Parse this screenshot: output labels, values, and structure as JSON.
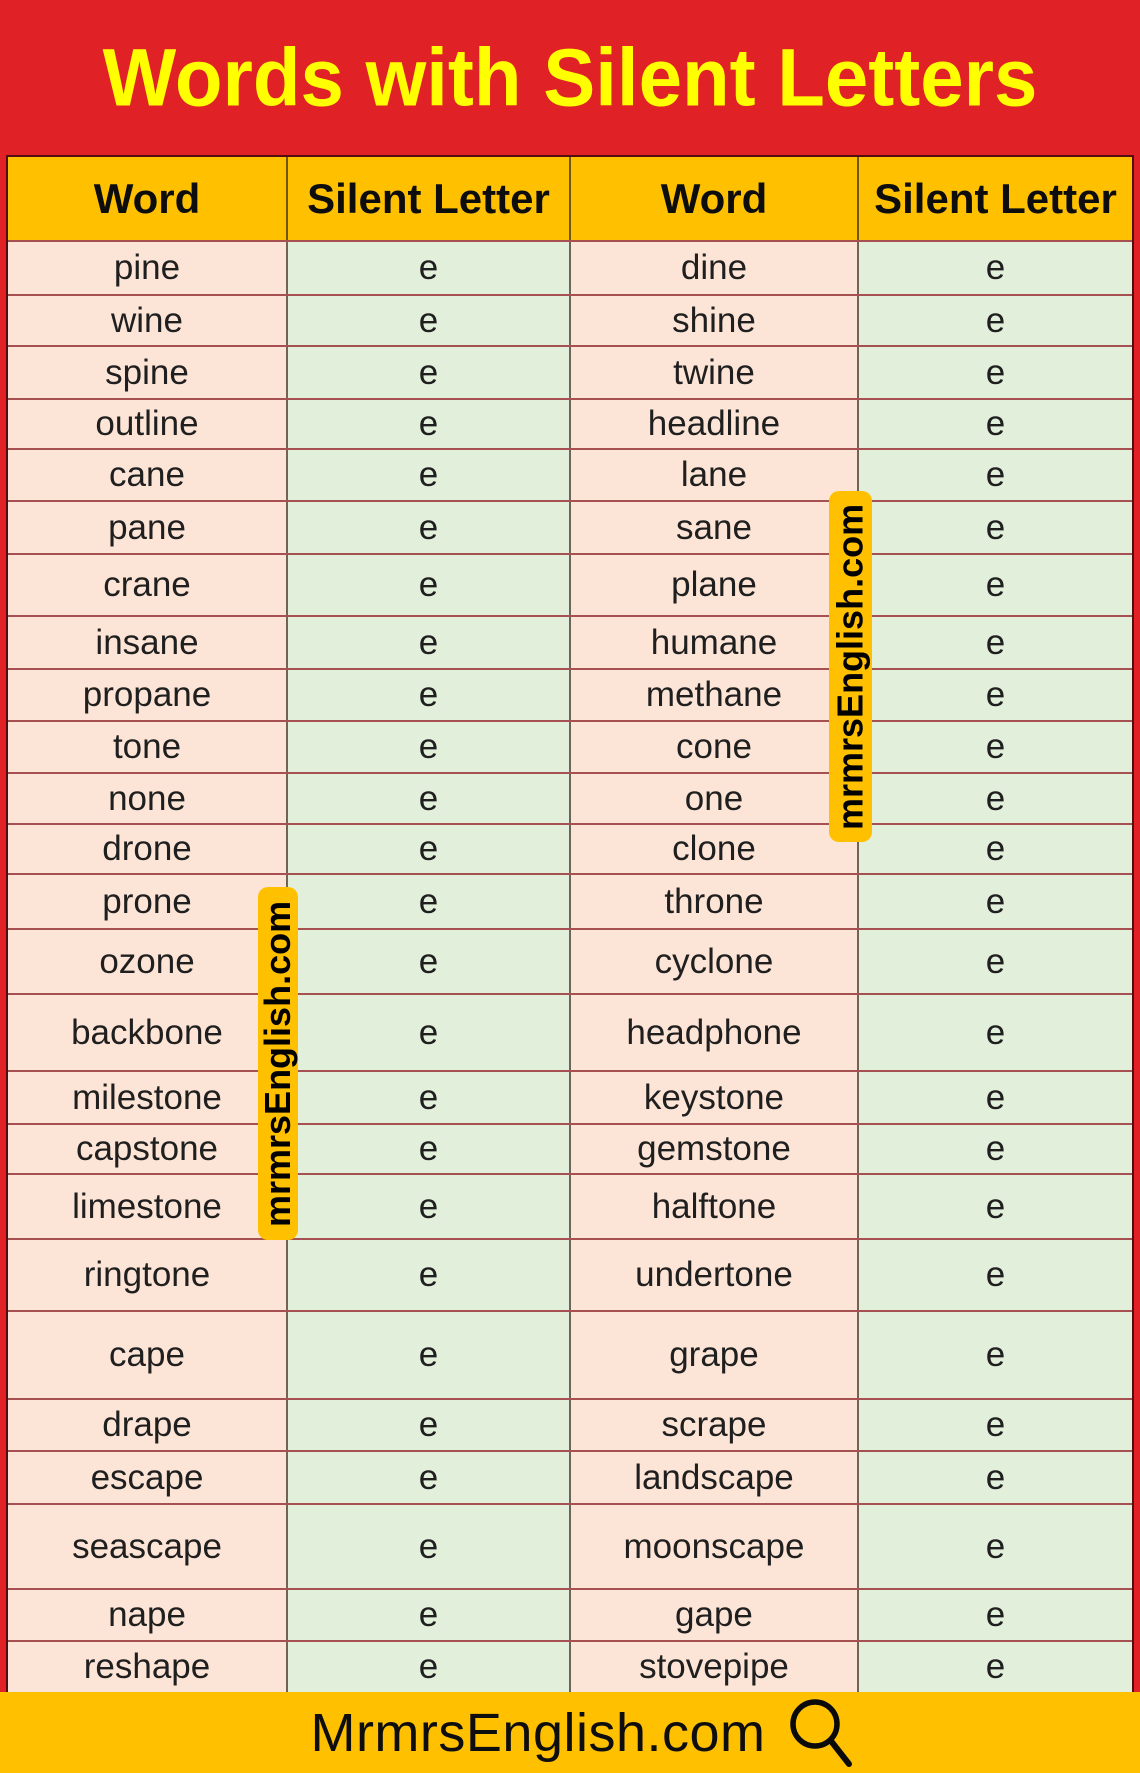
{
  "page": {
    "title": "Words with Silent Letters",
    "watermark": "mrmrsEnglish.com",
    "footer": {
      "site": "MrmrsEnglish.com",
      "icon": "magnifier-icon"
    }
  },
  "colors": {
    "background_red": "#E02125",
    "gold": "#FFC000",
    "title_yellow": "#FFFF00",
    "word_cell_peach": "#FCE4D6",
    "silent_cell_green": "#E2EFDA"
  },
  "table": {
    "headers": [
      "Word",
      "Silent Letter",
      "Word",
      "Silent Letter"
    ],
    "rows": [
      {
        "word_1": "pine",
        "silent_1": "e",
        "word_2": "dine",
        "silent_2": "e"
      },
      {
        "word_1": "wine",
        "silent_1": "e",
        "word_2": "shine",
        "silent_2": "e"
      },
      {
        "word_1": "spine",
        "silent_1": "e",
        "word_2": "twine",
        "silent_2": "e"
      },
      {
        "word_1": "outline",
        "silent_1": "e",
        "word_2": "headline",
        "silent_2": "e"
      },
      {
        "word_1": "cane",
        "silent_1": "e",
        "word_2": "lane",
        "silent_2": "e"
      },
      {
        "word_1": "pane",
        "silent_1": "e",
        "word_2": "sane",
        "silent_2": "e"
      },
      {
        "word_1": "crane",
        "silent_1": "e",
        "word_2": "plane",
        "silent_2": "e"
      },
      {
        "word_1": "insane",
        "silent_1": "e",
        "word_2": "humane",
        "silent_2": "e"
      },
      {
        "word_1": "propane",
        "silent_1": "e",
        "word_2": "methane",
        "silent_2": "e"
      },
      {
        "word_1": "tone",
        "silent_1": "e",
        "word_2": "cone",
        "silent_2": "e"
      },
      {
        "word_1": "none",
        "silent_1": "e",
        "word_2": "one",
        "silent_2": "e"
      },
      {
        "word_1": "drone",
        "silent_1": "e",
        "word_2": "clone",
        "silent_2": "e"
      },
      {
        "word_1": "prone",
        "silent_1": "e",
        "word_2": "throne",
        "silent_2": "e"
      },
      {
        "word_1": "ozone",
        "silent_1": "e",
        "word_2": "cyclone",
        "silent_2": "e"
      },
      {
        "word_1": "backbone",
        "silent_1": "e",
        "word_2": "headphone",
        "silent_2": "e"
      },
      {
        "word_1": "milestone",
        "silent_1": "e",
        "word_2": "keystone",
        "silent_2": "e"
      },
      {
        "word_1": "capstone",
        "silent_1": "e",
        "word_2": "gemstone",
        "silent_2": "e"
      },
      {
        "word_1": "limestone",
        "silent_1": "e",
        "word_2": "halftone",
        "silent_2": "e"
      },
      {
        "word_1": "ringtone",
        "silent_1": "e",
        "word_2": "undertone",
        "silent_2": "e"
      },
      {
        "word_1": "cape",
        "silent_1": "e",
        "word_2": "grape",
        "silent_2": "e"
      },
      {
        "word_1": "drape",
        "silent_1": "e",
        "word_2": "scrape",
        "silent_2": "e"
      },
      {
        "word_1": "escape",
        "silent_1": "e",
        "word_2": "landscape",
        "silent_2": "e"
      },
      {
        "word_1": "seascape",
        "silent_1": "e",
        "word_2": "moonscape",
        "silent_2": "e"
      },
      {
        "word_1": "nape",
        "silent_1": "e",
        "word_2": "gape",
        "silent_2": "e"
      },
      {
        "word_1": "reshape",
        "silent_1": "e",
        "word_2": "stovepipe",
        "silent_2": "e"
      }
    ]
  }
}
